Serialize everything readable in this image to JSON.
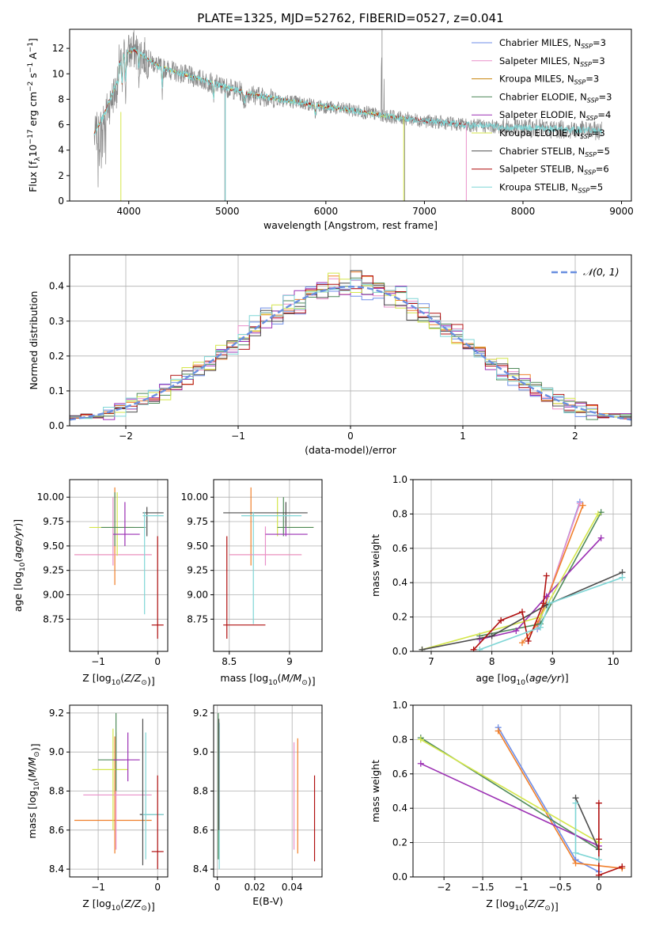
{
  "colors": {
    "chabrier_miles": "#6e8ee8",
    "salpeter_miles": "#e98fc9",
    "kroupa_miles": "#c8820a",
    "chabrier_elodie": "#4f8a5a",
    "salpeter_elodie": "#9b2fb3",
    "kroupa_elodie": "#d4e64a",
    "chabrier_stelib": "#4d4d4d",
    "salpeter_stelib": "#b01010",
    "kroupa_stelib": "#7fd6d6",
    "data": "#888888",
    "normal": "#6a8fe0",
    "orange": "#f07f2a",
    "grid": "#b0b0b0"
  },
  "chart_data": [
    {
      "id": "spectrum",
      "type": "line",
      "title": "PLATE=1325, MJD=52762, FIBERID=0527, z=0.041",
      "xlabel": "wavelength [Angstrom, rest frame]",
      "ylabel": "Flux [f_λ 10^-17 erg cm^-2 s^-1 A^-1]",
      "xlim": [
        3400,
        9100
      ],
      "ylim": [
        0,
        13.5
      ],
      "xticks": [
        "4000",
        "5000",
        "6000",
        "7000",
        "8000",
        "9000"
      ],
      "yticks": [
        "0",
        "2",
        "4",
        "6",
        "8",
        "10",
        "12"
      ],
      "grid": false,
      "legend_position": "top-right",
      "legend": [
        {
          "label": "Chabrier MILES, N",
          "sub": "SSP",
          "tail": "=3",
          "color": "chabrier_miles"
        },
        {
          "label": "Salpeter MILES, N",
          "sub": "SSP",
          "tail": "=3",
          "color": "salpeter_miles"
        },
        {
          "label": "Kroupa MILES, N",
          "sub": "SSP",
          "tail": "=3",
          "color": "kroupa_miles"
        },
        {
          "label": "Chabrier ELODIE, N",
          "sub": "SSP",
          "tail": "=3",
          "color": "chabrier_elodie"
        },
        {
          "label": "Salpeter ELODIE, N",
          "sub": "SSP",
          "tail": "=4",
          "color": "salpeter_elodie"
        },
        {
          "label": "Kroupa ELODIE, N",
          "sub": "SSP",
          "tail": "=3",
          "color": "kroupa_elodie"
        },
        {
          "label": "Chabrier STELIB, N",
          "sub": "SSP",
          "tail": "=5",
          "color": "chabrier_stelib"
        },
        {
          "label": "Salpeter STELIB, N",
          "sub": "SSP",
          "tail": "=6",
          "color": "salpeter_stelib"
        },
        {
          "label": "Kroupa STELIB, N",
          "sub": "SSP",
          "tail": "=5",
          "color": "kroupa_stelib"
        }
      ],
      "continuum": [
        [
          3650,
          6.5
        ],
        [
          3750,
          8.0
        ],
        [
          3850,
          10.0
        ],
        [
          3950,
          11.5
        ],
        [
          4050,
          11.9
        ],
        [
          4300,
          10.6
        ],
        [
          4500,
          10.1
        ],
        [
          4800,
          9.4
        ],
        [
          5000,
          8.9
        ],
        [
          5300,
          8.3
        ],
        [
          5600,
          7.9
        ],
        [
          6000,
          7.4
        ],
        [
          6300,
          7.1
        ],
        [
          6600,
          6.7
        ],
        [
          7000,
          6.3
        ],
        [
          7400,
          6.0
        ],
        [
          7800,
          5.8
        ],
        [
          8200,
          5.7
        ],
        [
          8800,
          5.5
        ]
      ]
    },
    {
      "id": "residuals",
      "type": "line",
      "xlabel": "(data-model)/error",
      "ylabel": "Normed distribution",
      "xlim": [
        -2.5,
        2.5
      ],
      "ylim": [
        0,
        0.49
      ],
      "xticks": [
        "−2",
        "−1",
        "0",
        "1",
        "2"
      ],
      "yticks": [
        "0.0",
        "0.1",
        "0.2",
        "0.3",
        "0.4"
      ],
      "grid": true,
      "legend_position": "top-right",
      "legend_label": "𝒩(0, 1)",
      "bin_width": 0.1
    },
    {
      "id": "age_vs_Z",
      "type": "scatter",
      "xlabel": "Z [log10(Z/Z⊙)]",
      "ylabel": "age [log10(age/yr)]",
      "xlim": [
        -1.48,
        0.17
      ],
      "ylim": [
        8.42,
        10.18
      ],
      "xticks": [
        -1,
        0
      ],
      "yticks": [
        8.75,
        9.0,
        9.25,
        9.5,
        9.75,
        10.0
      ],
      "grid": true
    },
    {
      "id": "age_vs_mass",
      "type": "scatter",
      "xlabel": "mass [log10(M/M⊙)]",
      "ylabel": "",
      "xlim": [
        8.37,
        9.27
      ],
      "ylim": [
        8.42,
        10.18
      ],
      "xticks": [
        8.5,
        9.0
      ],
      "yticks": [
        8.75,
        9.0,
        9.25,
        9.5,
        9.75,
        10.0
      ],
      "grid": true
    },
    {
      "id": "weight_vs_age",
      "type": "line",
      "xlabel": "age [log10(age/yr)]",
      "ylabel": "mass weight",
      "xlim": [
        6.7,
        10.3
      ],
      "ylim": [
        0,
        1.0
      ],
      "xticks": [
        7,
        8,
        9,
        10
      ],
      "yticks": [
        0.0,
        0.2,
        0.4,
        0.6,
        0.8,
        1.0
      ],
      "grid": true,
      "series": [
        {
          "color": "chabrier_miles",
          "x": [
            8.75,
            9.45
          ],
          "y": [
            0.13,
            0.87
          ]
        },
        {
          "color": "salpeter_miles",
          "x": [
            8.75,
            9.45
          ],
          "y": [
            0.14,
            0.86
          ]
        },
        {
          "color": "orange",
          "x": [
            8.5,
            8.75,
            9.5
          ],
          "y": [
            0.05,
            0.16,
            0.85
          ]
        },
        {
          "color": "chabrier_elodie",
          "x": [
            7.8,
            8.8,
            9.8
          ],
          "y": [
            0.09,
            0.16,
            0.81
          ]
        },
        {
          "color": "salpeter_elodie",
          "x": [
            7.8,
            8.4,
            8.9,
            9.8
          ],
          "y": [
            0.07,
            0.12,
            0.32,
            0.66
          ]
        },
        {
          "color": "kroupa_elodie",
          "x": [
            6.85,
            8.8,
            9.75
          ],
          "y": [
            0.01,
            0.2,
            0.8
          ]
        },
        {
          "color": "chabrier_stelib",
          "x": [
            6.85,
            8.0,
            8.9,
            10.15
          ],
          "y": [
            0.01,
            0.09,
            0.27,
            0.46
          ]
        },
        {
          "color": "salpeter_stelib",
          "x": [
            7.7,
            8.15,
            8.5,
            8.6,
            8.85,
            8.9
          ],
          "y": [
            0.01,
            0.18,
            0.23,
            0.06,
            0.28,
            0.44
          ]
        },
        {
          "color": "kroupa_stelib",
          "x": [
            7.8,
            8.8,
            8.95,
            10.15
          ],
          "y": [
            0.01,
            0.14,
            0.28,
            0.43
          ]
        }
      ]
    },
    {
      "id": "mass_vs_Z",
      "type": "scatter",
      "xlabel": "Z [log10(Z/Z⊙)]",
      "ylabel": "mass [log10(M/M⊙)]",
      "xlim": [
        -1.48,
        0.17
      ],
      "ylim": [
        8.36,
        9.24
      ],
      "xticks": [
        -1,
        0
      ],
      "yticks": [
        8.4,
        8.6,
        8.8,
        9.0,
        9.2
      ],
      "grid": true
    },
    {
      "id": "mass_vs_ebv",
      "type": "scatter",
      "xlabel": "E(B-V)",
      "ylabel": "",
      "xlim": [
        -0.002,
        0.056
      ],
      "ylim": [
        8.36,
        9.24
      ],
      "xticks": [
        0.0,
        0.02,
        0.04
      ],
      "yticks": [
        8.4,
        8.6,
        8.8,
        9.0,
        9.2
      ],
      "grid": true
    },
    {
      "id": "weight_vs_Z",
      "type": "line",
      "xlabel": "Z [log10(Z/Z⊙)]",
      "ylabel": "mass weight",
      "xlim": [
        -2.4,
        0.42
      ],
      "ylim": [
        0,
        1.0
      ],
      "xticks": [
        -2.0,
        -1.5,
        -1.0,
        -0.5,
        0.0
      ],
      "yticks": [
        0.0,
        0.2,
        0.4,
        0.6,
        0.8,
        1.0
      ],
      "grid": true,
      "series": [
        {
          "color": "chabrier_miles",
          "x": [
            -1.3,
            -0.3,
            0.0
          ],
          "y": [
            0.87,
            0.1,
            0.03
          ]
        },
        {
          "color": "orange",
          "x": [
            -1.3,
            -0.3,
            0.3
          ],
          "y": [
            0.85,
            0.08,
            0.05
          ]
        },
        {
          "color": "chabrier_elodie",
          "x": [
            -2.3,
            0.0
          ],
          "y": [
            0.81,
            0.16
          ]
        },
        {
          "color": "kroupa_elodie",
          "x": [
            -2.3,
            0.0
          ],
          "y": [
            0.8,
            0.2
          ]
        },
        {
          "color": "salpeter_elodie",
          "x": [
            -2.3,
            0.0
          ],
          "y": [
            0.66,
            0.18
          ]
        },
        {
          "color": "chabrier_stelib",
          "x": [
            -0.3,
            0.0
          ],
          "y": [
            0.46,
            0.16
          ]
        },
        {
          "color": "salpeter_stelib",
          "x": [
            0.0,
            0.0,
            0.0,
            0.3
          ],
          "y": [
            0.43,
            0.22,
            0.01,
            0.06
          ]
        },
        {
          "color": "kroupa_stelib",
          "x": [
            -0.3,
            -0.3,
            0.0
          ],
          "y": [
            0.43,
            0.14,
            0.1
          ]
        }
      ]
    }
  ]
}
